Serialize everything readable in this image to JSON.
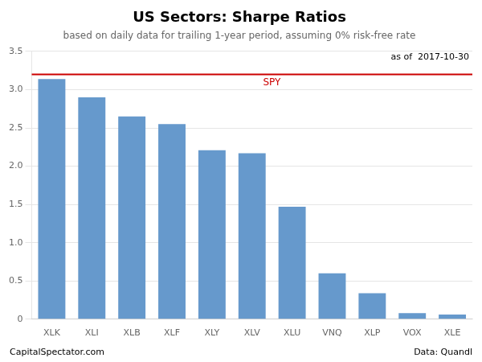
{
  "chart_data": {
    "type": "bar",
    "title": "US Sectors: Sharpe Ratios",
    "subtitle": "based on daily data for trailing 1-year period, assuming 0% risk-free rate",
    "categories": [
      "XLK",
      "XLI",
      "XLB",
      "XLF",
      "XLY",
      "XLV",
      "XLU",
      "VNQ",
      "XLP",
      "VOX",
      "XLE"
    ],
    "values": [
      3.14,
      2.9,
      2.65,
      2.55,
      2.21,
      2.17,
      1.47,
      0.6,
      0.34,
      0.08,
      0.06
    ],
    "color": "#6699cc",
    "reference_line": {
      "value": 3.2,
      "label": "SPY",
      "color": "#cc0000"
    },
    "annotations": [
      "as of  2017-10-30"
    ],
    "footer": [
      "CapitalSpectator.com",
      "Data: Quandl"
    ],
    "ylim": [
      0,
      3.5
    ],
    "yticks": [
      0,
      0.5,
      {
        "value": 1,
        "label": "1.0"
      },
      1.5,
      {
        "value": 2,
        "label": "2.0"
      },
      2.5,
      {
        "value": 3,
        "label": "3.0"
      },
      3.5
    ],
    "grid": true
  }
}
